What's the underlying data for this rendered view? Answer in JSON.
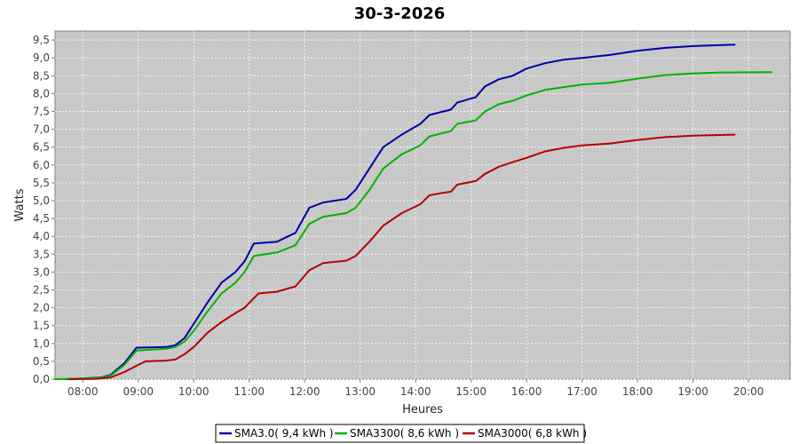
{
  "chart_data": {
    "type": "line",
    "title": "30-3-2026",
    "xlabel": "Heures",
    "ylabel": "Watts",
    "xlim": [
      "07:30",
      "20:45"
    ],
    "ylim": [
      0,
      9.75
    ],
    "x_ticks": [
      "08:00",
      "09:00",
      "10:00",
      "11:00",
      "12:00",
      "13:00",
      "14:00",
      "15:00",
      "16:00",
      "17:00",
      "18:00",
      "19:00",
      "20:00"
    ],
    "y_ticks": [
      "0,0",
      "0,5",
      "1,0",
      "1,5",
      "2,0",
      "2,5",
      "3,0",
      "3,5",
      "4,0",
      "4,5",
      "5,0",
      "5,5",
      "6,0",
      "6,5",
      "7,0",
      "7,5",
      "8,0",
      "8,5",
      "9,0",
      "9,5"
    ],
    "grid": true,
    "legend_position": "bottom-center",
    "series": [
      {
        "name": "SMA3.0( 9,4 kWh )",
        "color": "#0000a8",
        "points": [
          [
            "07:40",
            0.0
          ],
          [
            "08:00",
            0.02
          ],
          [
            "08:20",
            0.05
          ],
          [
            "08:30",
            0.12
          ],
          [
            "08:45",
            0.45
          ],
          [
            "08:58",
            0.88
          ],
          [
            "09:30",
            0.9
          ],
          [
            "09:40",
            0.95
          ],
          [
            "09:50",
            1.15
          ],
          [
            "10:00",
            1.55
          ],
          [
            "10:15",
            2.15
          ],
          [
            "10:30",
            2.7
          ],
          [
            "10:45",
            3.0
          ],
          [
            "10:55",
            3.3
          ],
          [
            "11:05",
            3.8
          ],
          [
            "11:30",
            3.85
          ],
          [
            "11:50",
            4.1
          ],
          [
            "12:05",
            4.8
          ],
          [
            "12:20",
            4.95
          ],
          [
            "12:45",
            5.05
          ],
          [
            "12:55",
            5.3
          ],
          [
            "13:10",
            5.9
          ],
          [
            "13:25",
            6.5
          ],
          [
            "13:45",
            6.85
          ],
          [
            "14:05",
            7.15
          ],
          [
            "14:15",
            7.4
          ],
          [
            "14:30",
            7.5
          ],
          [
            "14:38",
            7.55
          ],
          [
            "14:45",
            7.75
          ],
          [
            "15:05",
            7.9
          ],
          [
            "15:15",
            8.2
          ],
          [
            "15:30",
            8.4
          ],
          [
            "15:45",
            8.5
          ],
          [
            "16:00",
            8.7
          ],
          [
            "16:20",
            8.85
          ],
          [
            "16:40",
            8.95
          ],
          [
            "17:00",
            9.0
          ],
          [
            "17:30",
            9.08
          ],
          [
            "18:00",
            9.2
          ],
          [
            "18:30",
            9.28
          ],
          [
            "19:00",
            9.33
          ],
          [
            "19:45",
            9.37
          ]
        ]
      },
      {
        "name": "SMA3300( 8,6 kWh )",
        "color": "#00b400",
        "points": [
          [
            "07:30",
            0.0
          ],
          [
            "08:00",
            0.02
          ],
          [
            "08:20",
            0.04
          ],
          [
            "08:30",
            0.1
          ],
          [
            "08:45",
            0.4
          ],
          [
            "08:58",
            0.8
          ],
          [
            "09:30",
            0.85
          ],
          [
            "09:40",
            0.9
          ],
          [
            "09:50",
            1.05
          ],
          [
            "10:00",
            1.35
          ],
          [
            "10:15",
            1.9
          ],
          [
            "10:30",
            2.4
          ],
          [
            "10:45",
            2.7
          ],
          [
            "10:55",
            3.0
          ],
          [
            "11:05",
            3.45
          ],
          [
            "11:30",
            3.55
          ],
          [
            "11:50",
            3.75
          ],
          [
            "12:05",
            4.35
          ],
          [
            "12:20",
            4.55
          ],
          [
            "12:45",
            4.65
          ],
          [
            "12:55",
            4.8
          ],
          [
            "13:10",
            5.3
          ],
          [
            "13:25",
            5.9
          ],
          [
            "13:45",
            6.3
          ],
          [
            "14:05",
            6.55
          ],
          [
            "14:15",
            6.8
          ],
          [
            "14:30",
            6.9
          ],
          [
            "14:38",
            6.95
          ],
          [
            "14:45",
            7.15
          ],
          [
            "15:05",
            7.25
          ],
          [
            "15:15",
            7.5
          ],
          [
            "15:30",
            7.7
          ],
          [
            "15:45",
            7.8
          ],
          [
            "16:00",
            7.95
          ],
          [
            "16:20",
            8.1
          ],
          [
            "16:40",
            8.18
          ],
          [
            "17:00",
            8.25
          ],
          [
            "17:30",
            8.3
          ],
          [
            "18:00",
            8.42
          ],
          [
            "18:30",
            8.52
          ],
          [
            "19:00",
            8.56
          ],
          [
            "19:30",
            8.59
          ],
          [
            "20:25",
            8.6
          ]
        ]
      },
      {
        "name": "SMA3000( 6,8 kWh )",
        "color": "#b40000",
        "points": [
          [
            "07:45",
            0.0
          ],
          [
            "08:15",
            0.01
          ],
          [
            "08:30",
            0.05
          ],
          [
            "08:45",
            0.2
          ],
          [
            "09:00",
            0.4
          ],
          [
            "09:08",
            0.5
          ],
          [
            "09:30",
            0.52
          ],
          [
            "09:40",
            0.55
          ],
          [
            "09:50",
            0.7
          ],
          [
            "10:00",
            0.9
          ],
          [
            "10:15",
            1.3
          ],
          [
            "10:30",
            1.6
          ],
          [
            "10:45",
            1.85
          ],
          [
            "10:55",
            2.0
          ],
          [
            "11:10",
            2.4
          ],
          [
            "11:30",
            2.45
          ],
          [
            "11:50",
            2.6
          ],
          [
            "12:05",
            3.05
          ],
          [
            "12:20",
            3.25
          ],
          [
            "12:45",
            3.32
          ],
          [
            "12:55",
            3.45
          ],
          [
            "13:10",
            3.85
          ],
          [
            "13:25",
            4.3
          ],
          [
            "13:45",
            4.65
          ],
          [
            "14:05",
            4.9
          ],
          [
            "14:15",
            5.15
          ],
          [
            "14:30",
            5.22
          ],
          [
            "14:38",
            5.25
          ],
          [
            "14:45",
            5.45
          ],
          [
            "15:05",
            5.55
          ],
          [
            "15:15",
            5.75
          ],
          [
            "15:30",
            5.95
          ],
          [
            "15:45",
            6.08
          ],
          [
            "16:00",
            6.2
          ],
          [
            "16:20",
            6.38
          ],
          [
            "16:40",
            6.48
          ],
          [
            "17:00",
            6.55
          ],
          [
            "17:30",
            6.6
          ],
          [
            "18:00",
            6.7
          ],
          [
            "18:30",
            6.78
          ],
          [
            "19:00",
            6.82
          ],
          [
            "19:45",
            6.85
          ]
        ]
      }
    ]
  }
}
